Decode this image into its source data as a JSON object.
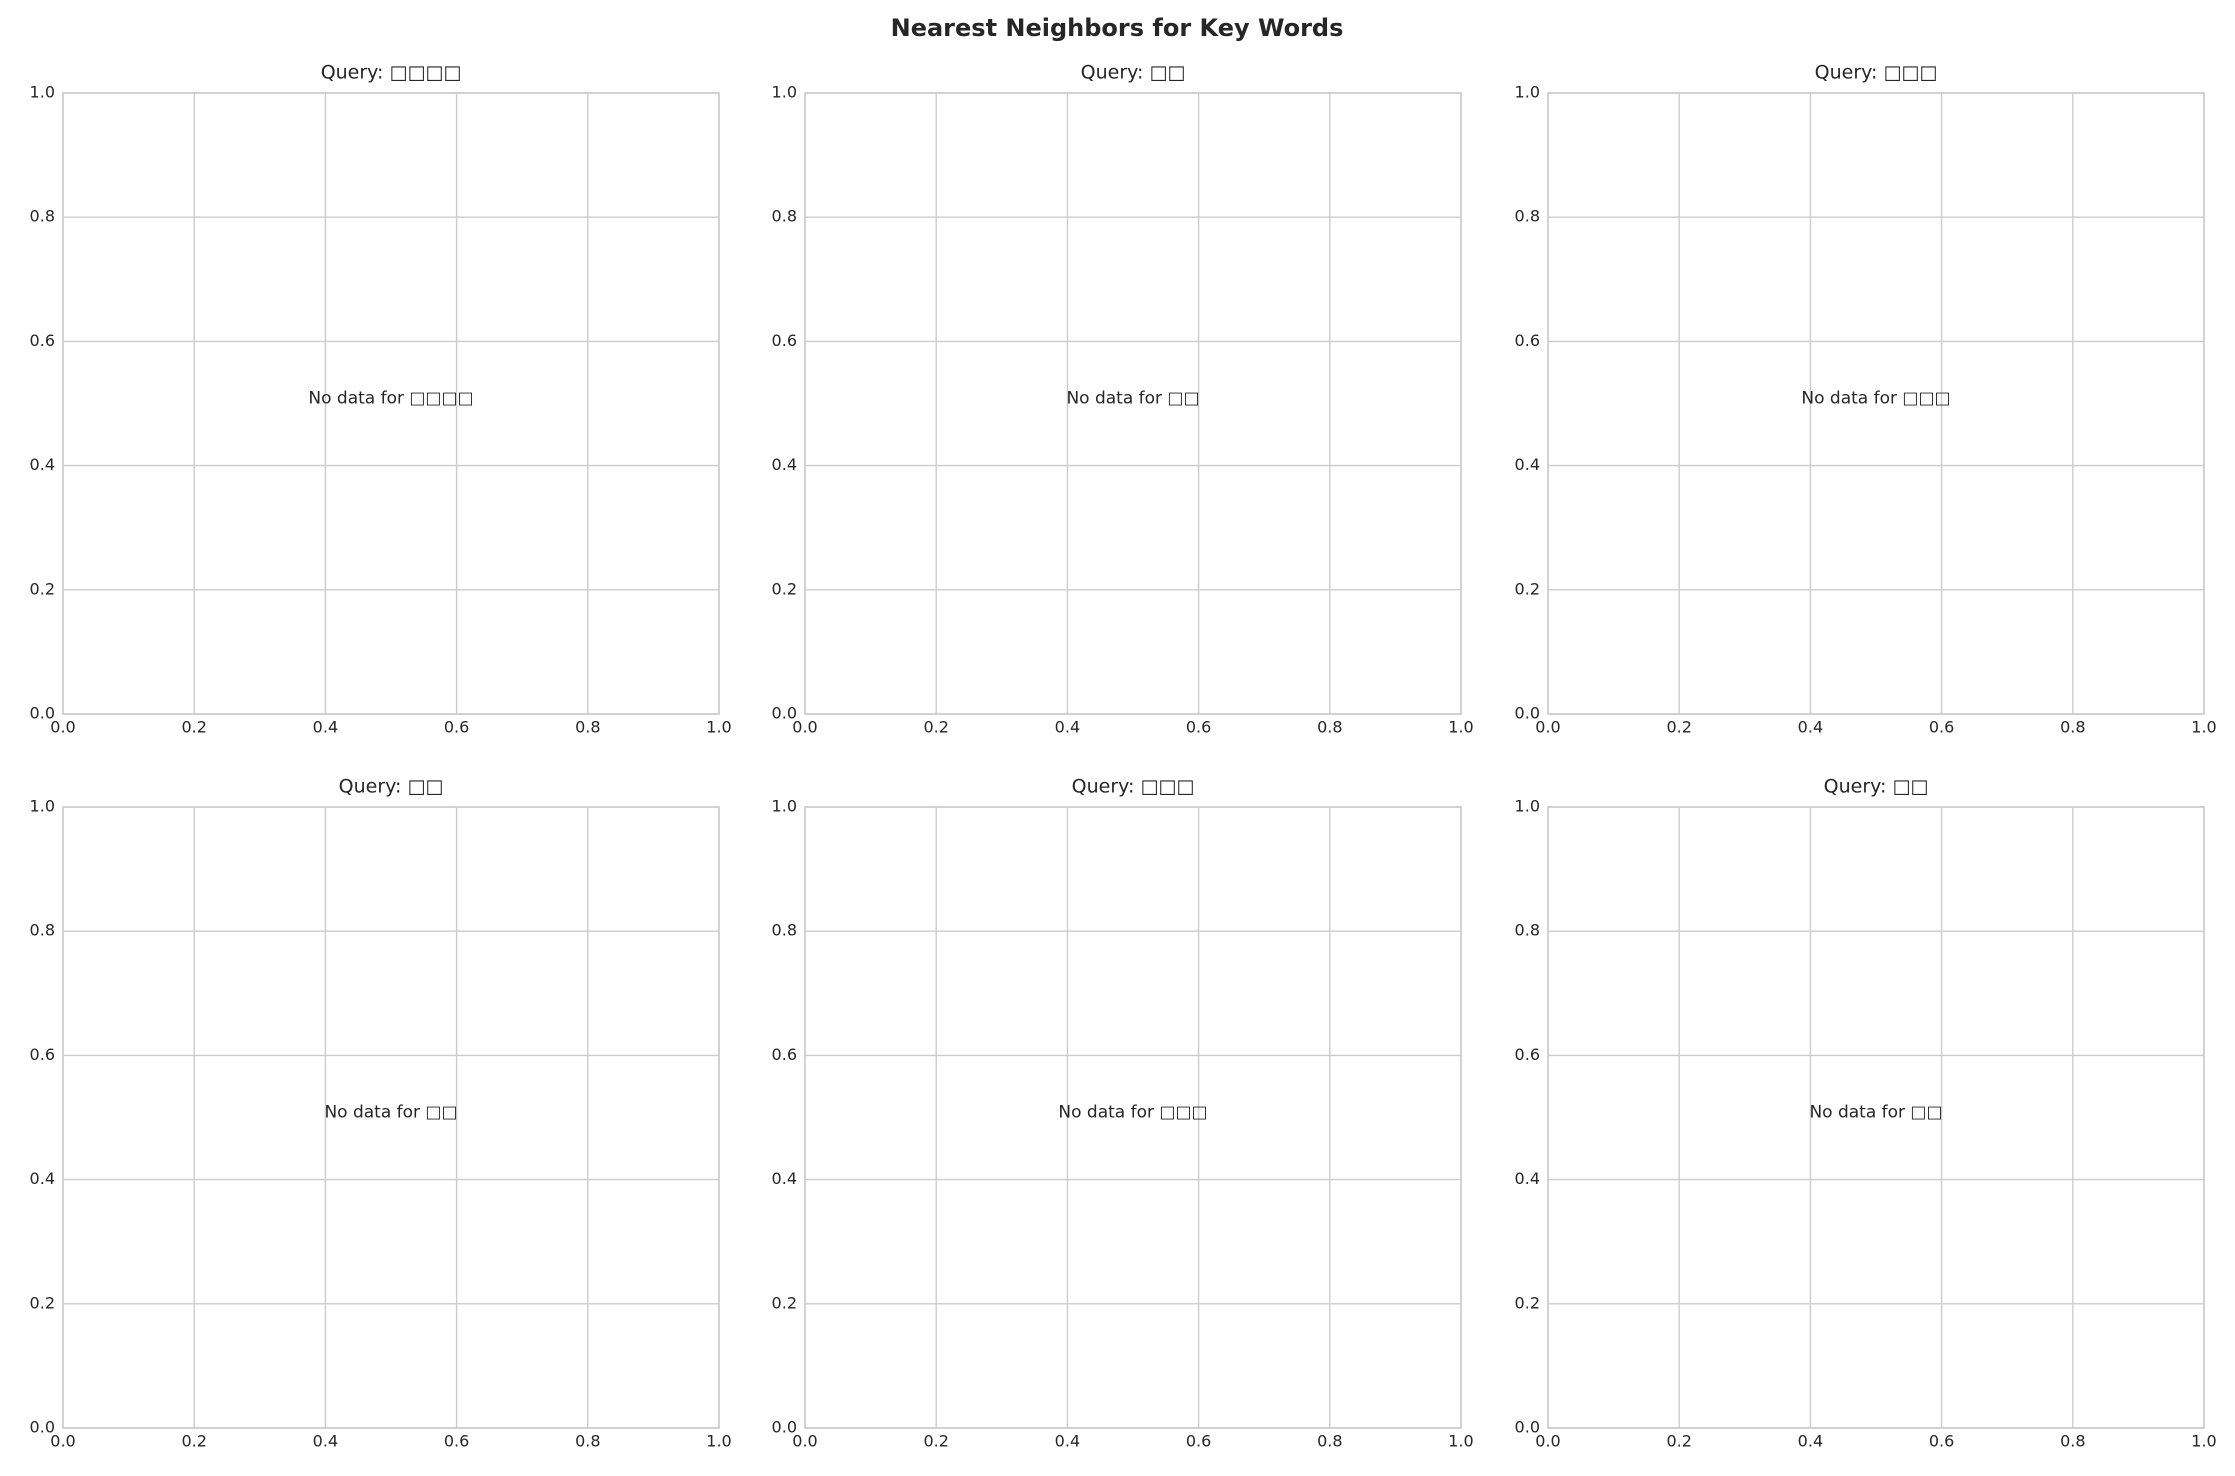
{
  "title": "Nearest Neighbors for Key Words",
  "chart_data": [
    {
      "type": "scatter",
      "title": "Query: □□□□",
      "annotation": "No data for □□□□",
      "xlim": [
        0,
        1
      ],
      "ylim": [
        0,
        1
      ],
      "xticks": [
        {
          "value": 0,
          "label": "0.0"
        },
        0.2,
        0.4,
        0.6,
        0.8,
        {
          "value": 1,
          "label": "1.0"
        }
      ],
      "yticks": [
        {
          "value": 0,
          "label": "0.0"
        },
        0.2,
        0.4,
        0.6,
        0.8,
        {
          "value": 1,
          "label": "1.0"
        }
      ],
      "grid": true
    },
    {
      "type": "scatter",
      "title": "Query: □□",
      "annotation": "No data for □□",
      "xlim": [
        0,
        1
      ],
      "ylim": [
        0,
        1
      ],
      "xticks": [
        {
          "value": 0,
          "label": "0.0"
        },
        0.2,
        0.4,
        0.6,
        0.8,
        {
          "value": 1,
          "label": "1.0"
        }
      ],
      "yticks": [
        {
          "value": 0,
          "label": "0.0"
        },
        0.2,
        0.4,
        0.6,
        0.8,
        {
          "value": 1,
          "label": "1.0"
        }
      ],
      "grid": true
    },
    {
      "type": "scatter",
      "title": "Query: □□□",
      "annotation": "No data for □□□",
      "xlim": [
        0,
        1
      ],
      "ylim": [
        0,
        1
      ],
      "xticks": [
        {
          "value": 0,
          "label": "0.0"
        },
        0.2,
        0.4,
        0.6,
        0.8,
        {
          "value": 1,
          "label": "1.0"
        }
      ],
      "yticks": [
        {
          "value": 0,
          "label": "0.0"
        },
        0.2,
        0.4,
        0.6,
        0.8,
        {
          "value": 1,
          "label": "1.0"
        }
      ],
      "grid": true
    },
    {
      "type": "scatter",
      "title": "Query: □□",
      "annotation": "No data for □□",
      "xlim": [
        0,
        1
      ],
      "ylim": [
        0,
        1
      ],
      "xticks": [
        {
          "value": 0,
          "label": "0.0"
        },
        0.2,
        0.4,
        0.6,
        0.8,
        {
          "value": 1,
          "label": "1.0"
        }
      ],
      "yticks": [
        {
          "value": 0,
          "label": "0.0"
        },
        0.2,
        0.4,
        0.6,
        0.8,
        {
          "value": 1,
          "label": "1.0"
        }
      ],
      "grid": true
    },
    {
      "type": "scatter",
      "title": "Query: □□□",
      "annotation": "No data for □□□",
      "xlim": [
        0,
        1
      ],
      "ylim": [
        0,
        1
      ],
      "xticks": [
        {
          "value": 0,
          "label": "0.0"
        },
        0.2,
        0.4,
        0.6,
        0.8,
        {
          "value": 1,
          "label": "1.0"
        }
      ],
      "yticks": [
        {
          "value": 0,
          "label": "0.0"
        },
        0.2,
        0.4,
        0.6,
        0.8,
        {
          "value": 1,
          "label": "1.0"
        }
      ],
      "grid": true
    },
    {
      "type": "scatter",
      "title": "Query: □□",
      "annotation": "No data for □□",
      "xlim": [
        0,
        1
      ],
      "ylim": [
        0,
        1
      ],
      "xticks": [
        {
          "value": 0,
          "label": "0.0"
        },
        0.2,
        0.4,
        0.6,
        0.8,
        {
          "value": 1,
          "label": "1.0"
        }
      ],
      "yticks": [
        {
          "value": 0,
          "label": "0.0"
        },
        0.2,
        0.4,
        0.6,
        0.8,
        {
          "value": 1,
          "label": "1.0"
        }
      ],
      "grid": true
    }
  ]
}
